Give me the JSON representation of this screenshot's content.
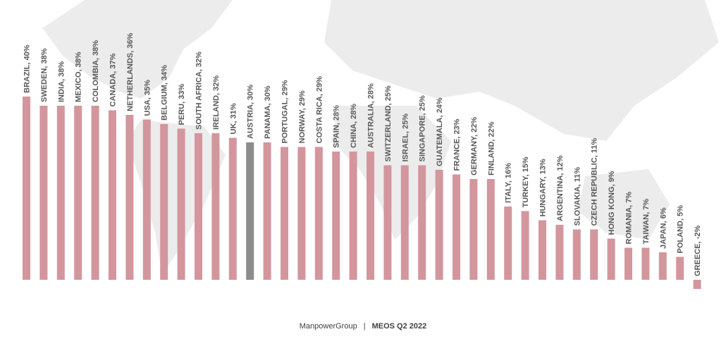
{
  "chart_data": {
    "type": "bar",
    "title": "",
    "xlabel": "",
    "ylabel": "",
    "ylim": [
      -2,
      40
    ],
    "grid": false,
    "categories": [
      "BRAZIL",
      "SWEDEN",
      "INDIA",
      "MEXICO",
      "COLOMBIA",
      "CANADA",
      "NETHERLANDS",
      "USA",
      "BELGIUM",
      "PERU",
      "SOUTH AFRICA",
      "IRELAND",
      "UK",
      "AUSTRIA",
      "PANAMA",
      "PORTUGAL",
      "NORWAY",
      "COSTA RICA",
      "SPAIN",
      "CHINA",
      "AUSTRALIA",
      "SWITZERLAND",
      "ISRAEL",
      "SINGAPORE",
      "GUATEMALA",
      "FRANCE",
      "GERMANY",
      "FINLAND",
      "ITALY",
      "TURKEY",
      "HUNGARY",
      "ARGENTINA",
      "SLOVAKIA",
      "CZECH REPUBLIC",
      "HONG KONG",
      "ROMANIA",
      "TAIWAN",
      "JAPAN",
      "POLAND",
      "GREECE"
    ],
    "values": [
      40,
      38,
      38,
      38,
      38,
      37,
      36,
      35,
      34,
      33,
      32,
      32,
      31,
      30,
      30,
      29,
      29,
      29,
      28,
      28,
      28,
      25,
      25,
      25,
      24,
      23,
      22,
      22,
      16,
      15,
      13,
      12,
      11,
      11,
      9,
      7,
      7,
      6,
      5,
      -2
    ],
    "highlight": "AUSTRIA",
    "colors": {
      "bar": "#d3969d",
      "highlight": "#8c8c8c",
      "label": "#595959"
    }
  },
  "footer": {
    "brand": "ManpowerGroup",
    "separator": "|",
    "survey": "MEOS Q2 2022"
  }
}
